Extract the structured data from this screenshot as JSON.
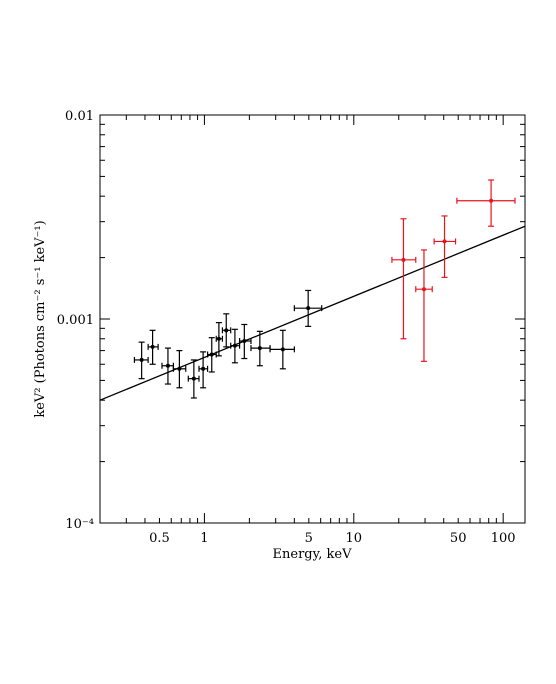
{
  "chart_data": {
    "type": "scatter",
    "xlabel": "Energy, keV",
    "ylabel": "keV² (Photons cm⁻² s⁻¹ keV⁻¹)",
    "xscale": "log",
    "yscale": "log",
    "xlim": [
      0.2,
      140
    ],
    "ylim": [
      0.0001,
      0.01
    ],
    "xtick_labels": [
      {
        "value": 0.5,
        "label": "0.5"
      },
      {
        "value": 1,
        "label": "1"
      },
      {
        "value": 5,
        "label": "5"
      },
      {
        "value": 10,
        "label": "10"
      },
      {
        "value": 50,
        "label": "50"
      },
      {
        "value": 100,
        "label": "100"
      }
    ],
    "ytick_labels": [
      {
        "value": 0.01,
        "label": "0.01"
      },
      {
        "value": 0.001,
        "label": "0.001"
      },
      {
        "value": 0.0001,
        "label": "10⁻⁴"
      }
    ],
    "series": [
      {
        "color": "#000000",
        "points": [
          {
            "x": 0.38,
            "y": 0.00063,
            "xerr": [
              0.34,
              0.42
            ],
            "yerr": [
              0.00051,
              0.00077
            ]
          },
          {
            "x": 0.45,
            "y": 0.00073,
            "xerr": [
              0.42,
              0.49
            ],
            "yerr": [
              0.0006,
              0.00088
            ]
          },
          {
            "x": 0.57,
            "y": 0.00059,
            "xerr": [
              0.52,
              0.62
            ],
            "yerr": [
              0.00048,
              0.00072
            ]
          },
          {
            "x": 0.68,
            "y": 0.00057,
            "xerr": [
              0.62,
              0.75
            ],
            "yerr": [
              0.00046,
              0.0007
            ]
          },
          {
            "x": 0.85,
            "y": 0.00051,
            "xerr": [
              0.78,
              0.92
            ],
            "yerr": [
              0.00041,
              0.00063
            ]
          },
          {
            "x": 0.98,
            "y": 0.00057,
            "xerr": [
              0.92,
              1.05
            ],
            "yerr": [
              0.00046,
              0.00069
            ]
          },
          {
            "x": 1.12,
            "y": 0.00067,
            "xerr": [
              1.05,
              1.2
            ],
            "yerr": [
              0.00055,
              0.00081
            ]
          },
          {
            "x": 1.25,
            "y": 0.0008,
            "xerr": [
              1.2,
              1.32
            ],
            "yerr": [
              0.00066,
              0.00096
            ]
          },
          {
            "x": 1.4,
            "y": 0.00088,
            "xerr": [
              1.32,
              1.5
            ],
            "yerr": [
              0.00073,
              0.00106
            ]
          },
          {
            "x": 1.6,
            "y": 0.00074,
            "xerr": [
              1.5,
              1.72
            ],
            "yerr": [
              0.00061,
              0.00089
            ]
          },
          {
            "x": 1.85,
            "y": 0.00078,
            "xerr": [
              1.72,
              2.05
            ],
            "yerr": [
              0.00064,
              0.00094
            ]
          },
          {
            "x": 2.35,
            "y": 0.00072,
            "xerr": [
              2.05,
              2.75
            ],
            "yerr": [
              0.00059,
              0.00087
            ]
          },
          {
            "x": 3.35,
            "y": 0.00071,
            "xerr": [
              2.75,
              4.0
            ],
            "yerr": [
              0.00057,
              0.00088
            ]
          },
          {
            "x": 4.95,
            "y": 0.00113,
            "xerr": [
              4.0,
              6.1
            ],
            "yerr": [
              0.00092,
              0.00138
            ]
          }
        ]
      },
      {
        "color": "#e8141c",
        "points": [
          {
            "x": 21.5,
            "y": 0.00195,
            "xerr": [
              18.0,
              26.0
            ],
            "yerr": [
              0.0008,
              0.0031
            ]
          },
          {
            "x": 29.5,
            "y": 0.0014,
            "xerr": [
              26.0,
              33.5
            ],
            "yerr": [
              0.00062,
              0.00218
            ]
          },
          {
            "x": 40.5,
            "y": 0.0024,
            "xerr": [
              34.5,
              48.0
            ],
            "yerr": [
              0.0016,
              0.0032
            ]
          },
          {
            "x": 83.0,
            "y": 0.0038,
            "xerr": [
              49.0,
              120.0
            ],
            "yerr": [
              0.00285,
              0.0048
            ]
          }
        ]
      }
    ],
    "model_line": {
      "x": [
        0.2,
        140
      ],
      "y": [
        0.0004,
        0.00285
      ],
      "color": "#000000"
    },
    "grid": false,
    "legend": "none"
  }
}
